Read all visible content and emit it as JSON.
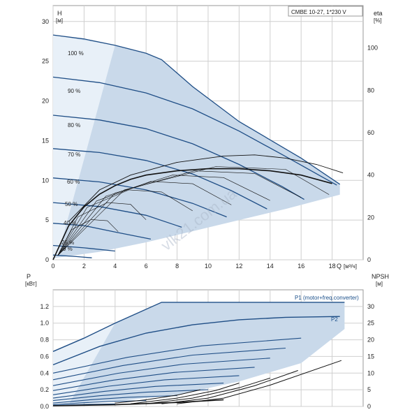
{
  "chart_data": [
    {
      "type": "line",
      "model": "CMBE 10-27, 1*230 V",
      "xlabel": "Q",
      "xunit": "[м³/ч]",
      "ylabel_left": "H",
      "yunit_left": "[м]",
      "ylabel_right": "eta",
      "yunit_right": "[%]",
      "xlim": [
        0,
        20
      ],
      "ylim_left": [
        0,
        32
      ],
      "ylim_right": [
        0,
        120
      ],
      "xticks": [
        0,
        2,
        4,
        6,
        8,
        10,
        12,
        14,
        16,
        18
      ],
      "yticks_left": [
        0,
        5,
        10,
        15,
        20,
        25,
        30
      ],
      "yticks_right": [
        0,
        20,
        40,
        60,
        80,
        100
      ],
      "grid": true,
      "watermark": "vlk21.com.ua",
      "qh_curves": [
        {
          "label": "100 %",
          "points": [
            [
              0,
              28.3
            ],
            [
              2,
              27.8
            ],
            [
              4,
              27.0
            ],
            [
              6,
              26.0
            ],
            [
              7,
              25.2
            ],
            [
              9,
              21.8
            ],
            [
              12,
              17.4
            ],
            [
              16,
              12.8
            ],
            [
              18.5,
              9.5
            ]
          ]
        },
        {
          "label": "90 %",
          "points": [
            [
              0,
              23.0
            ],
            [
              3,
              22.3
            ],
            [
              6,
              21.0
            ],
            [
              9,
              19.0
            ],
            [
              12,
              16.2
            ],
            [
              15,
              13.0
            ],
            [
              18.3,
              9.4
            ]
          ]
        },
        {
          "label": "80 %",
          "points": [
            [
              0,
              18.2
            ],
            [
              3,
              17.6
            ],
            [
              6,
              16.5
            ],
            [
              9,
              14.6
            ],
            [
              12,
              12.0
            ],
            [
              14.8,
              9.2
            ],
            [
              16.2,
              7.6
            ]
          ]
        },
        {
          "label": "70 %",
          "points": [
            [
              0,
              14.0
            ],
            [
              3,
              13.5
            ],
            [
              6,
              12.5
            ],
            [
              9,
              10.8
            ],
            [
              11.5,
              8.7
            ],
            [
              13.8,
              6.4
            ]
          ]
        },
        {
          "label": "60 %",
          "points": [
            [
              0,
              10.3
            ],
            [
              3,
              9.8
            ],
            [
              6,
              8.8
            ],
            [
              9,
              7.1
            ],
            [
              11.2,
              5.4
            ]
          ]
        },
        {
          "label": "50 %",
          "points": [
            [
              0,
              7.2
            ],
            [
              3,
              6.7
            ],
            [
              6,
              5.6
            ],
            [
              8.3,
              4.1
            ]
          ]
        },
        {
          "label": "40 %",
          "points": [
            [
              0,
              4.6
            ],
            [
              2,
              4.3
            ],
            [
              4,
              3.5
            ],
            [
              6.3,
              2.6
            ]
          ]
        },
        {
          "label": "25 %",
          "points": [
            [
              0,
              1.8
            ],
            [
              2,
              1.5
            ],
            [
              4,
              1.1
            ]
          ]
        },
        {
          "label": "9 %",
          "points": [
            [
              0,
              0.6
            ],
            [
              1.5,
              0.4
            ],
            [
              2.5,
              0.25
            ]
          ]
        }
      ],
      "eta_curve": {
        "points": [
          [
            0,
            0
          ],
          [
            1,
            16
          ],
          [
            2,
            25
          ],
          [
            3,
            31
          ],
          [
            4,
            35
          ],
          [
            5,
            38
          ],
          [
            6,
            40
          ],
          [
            8,
            42
          ],
          [
            10,
            43
          ],
          [
            12,
            43
          ],
          [
            14,
            42
          ],
          [
            16,
            40
          ],
          [
            18,
            36
          ]
        ]
      },
      "eta_upper_curve": {
        "points": [
          [
            1,
            18
          ],
          [
            3,
            33
          ],
          [
            5,
            40
          ],
          [
            8,
            46
          ],
          [
            11,
            49
          ],
          [
            13,
            49.5
          ],
          [
            15,
            48
          ],
          [
            17,
            45
          ],
          [
            18.7,
            41
          ]
        ]
      }
    },
    {
      "type": "line",
      "xlim": [
        0,
        20
      ],
      "ylabel_left": "P",
      "yunit_left": "[кВт]",
      "ylabel_right": "NPSH",
      "yunit_right": "[м]",
      "ylim_left": [
        0,
        1.4
      ],
      "ylim_right": [
        0,
        35
      ],
      "yticks_left": [
        0.0,
        0.2,
        0.4,
        0.6,
        0.8,
        1.0,
        1.2
      ],
      "yticks_right": [
        0,
        5,
        10,
        15,
        20,
        25,
        30
      ],
      "grid": true,
      "series": [
        {
          "name": "P1 (motor+freq.converter)",
          "points": [
            [
              0,
              0.66
            ],
            [
              2,
              0.82
            ],
            [
              4,
              1.0
            ],
            [
              7,
              1.25
            ],
            [
              18.8,
              1.25
            ]
          ]
        },
        {
          "name": "P2",
          "points": [
            [
              0,
              0.5
            ],
            [
              3,
              0.72
            ],
            [
              6,
              0.88
            ],
            [
              9,
              0.98
            ],
            [
              12,
              1.04
            ],
            [
              15,
              1.07
            ],
            [
              18.5,
              1.08
            ]
          ]
        }
      ],
      "npsh_curves": [
        {
          "points": [
            [
              4,
              1.0
            ],
            [
              6,
              2.0
            ],
            [
              8,
              3.4
            ],
            [
              9.5,
              5.0
            ]
          ]
        },
        {
          "points": [
            [
              5,
              0.8
            ],
            [
              8,
              2.5
            ],
            [
              10.5,
              4.8
            ],
            [
              12,
              7.0
            ]
          ]
        },
        {
          "points": [
            [
              6,
              0.8
            ],
            [
              9,
              2.5
            ],
            [
              12,
              5.6
            ],
            [
              14,
              8.5
            ]
          ]
        },
        {
          "points": [
            [
              7,
              0.8
            ],
            [
              10,
              2.5
            ],
            [
              13,
              6.2
            ],
            [
              15.8,
              10.8
            ]
          ]
        },
        {
          "points": [
            [
              8,
              0.8
            ],
            [
              11,
              2.5
            ],
            [
              14,
              6.4
            ],
            [
              18.6,
              13.8
            ]
          ]
        }
      ]
    }
  ],
  "labels": {
    "pct_100": "100 %",
    "pct_90": "90 %",
    "pct_80": "80 %",
    "pct_70": "70 %",
    "pct_60": "60 %",
    "pct_50": "50 %",
    "pct_40": "40 %",
    "pct_25": "25 %",
    "pct_9": "9 %"
  }
}
